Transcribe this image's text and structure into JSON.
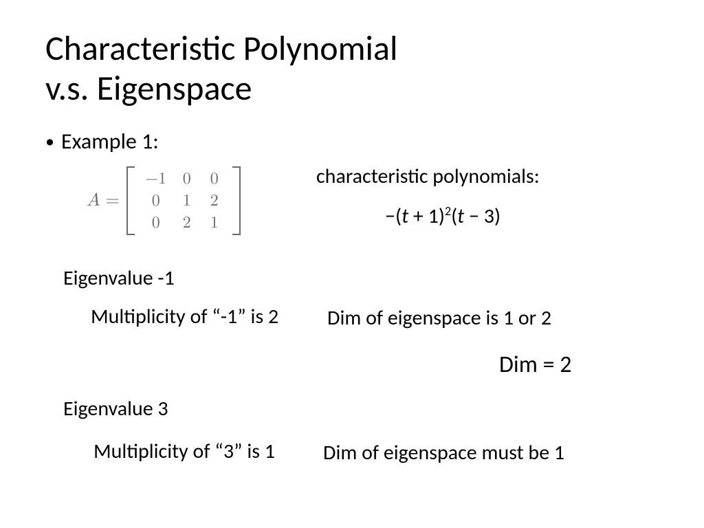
{
  "title_line1": "Characteristic Polynomial",
  "title_line2": "v.s. Eigenspace",
  "bullet_label": "Example 1:",
  "matrix": {
    "symbol": "A",
    "equals": "=",
    "rows": [
      [
        "−1",
        "0",
        "0"
      ],
      [
        "0",
        "1",
        "2"
      ],
      [
        "0",
        "2",
        "1"
      ]
    ],
    "color": "#6a6a6a",
    "fontsize": 24
  },
  "cp_label": "characteristic polynomials:",
  "cp_expr": {
    "prefix_minus": "−",
    "part1_open": "(",
    "part1_var": "t",
    "part1_op": " + 1)",
    "part1_sup": "2",
    "part2_open": "(",
    "part2_var": "t",
    "part2_op": " − 3)"
  },
  "ev1": {
    "label": "Eigenvalue -1",
    "mult": "Multiplicity of “-1” is 2",
    "dim_range": "Dim of eigenspace is 1 or 2",
    "dim_result": "Dim = 2"
  },
  "ev2": {
    "label": "Eigenvalue 3",
    "mult": "Multiplicity of “3” is 1",
    "dim": "Dim of eigenspace must be 1"
  },
  "colors": {
    "background": "#ffffff",
    "text": "#000000",
    "matrix": "#6a6a6a"
  }
}
